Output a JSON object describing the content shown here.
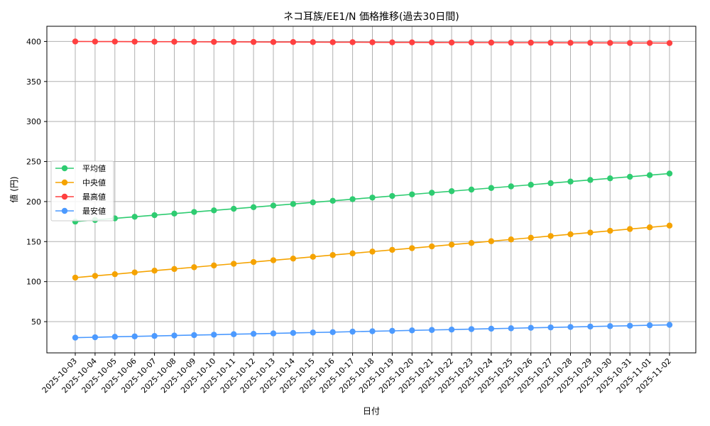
{
  "chart_data": {
    "type": "line",
    "title": "ネコ耳族/EE1/N 価格推移(過去30日間)",
    "xlabel": "日付",
    "ylabel": "値 (円)",
    "x": [
      "2025-10-03",
      "2025-10-04",
      "2025-10-05",
      "2025-10-06",
      "2025-10-07",
      "2025-10-08",
      "2025-10-09",
      "2025-10-10",
      "2025-10-11",
      "2025-10-12",
      "2025-10-13",
      "2025-10-14",
      "2025-10-15",
      "2025-10-16",
      "2025-10-17",
      "2025-10-18",
      "2025-10-19",
      "2025-10-20",
      "2025-10-21",
      "2025-10-22",
      "2025-10-23",
      "2025-10-24",
      "2025-10-25",
      "2025-10-26",
      "2025-10-27",
      "2025-10-28",
      "2025-10-29",
      "2025-10-30",
      "2025-10-31",
      "2025-11-01",
      "2025-11-02"
    ],
    "ylim": [
      11,
      419
    ],
    "yticks": [
      50,
      100,
      150,
      200,
      250,
      300,
      350,
      400
    ],
    "grid": true,
    "legend_position": "center-left",
    "series": [
      {
        "name": "平均値",
        "color": "#2ecc71",
        "values": [
          175,
          177,
          179,
          181,
          183,
          185,
          187,
          189,
          191,
          193,
          195,
          197,
          199,
          201,
          203,
          205,
          207,
          209,
          211,
          213,
          215,
          217,
          219,
          221,
          223,
          225,
          227,
          229,
          231,
          233,
          235
        ]
      },
      {
        "name": "中央値",
        "color": "#f5a300",
        "values": [
          105,
          107.2,
          109.3,
          111.5,
          113.7,
          115.8,
          118,
          120.2,
          122.3,
          124.5,
          126.7,
          128.8,
          131,
          133.2,
          135.3,
          137.5,
          139.7,
          141.8,
          144,
          146.2,
          148.3,
          150.5,
          152.7,
          154.8,
          157,
          159.2,
          161.3,
          163.5,
          165.7,
          167.8,
          170
        ]
      },
      {
        "name": "最高値",
        "color": "#ff4040",
        "values": [
          400,
          399.9,
          399.9,
          399.8,
          399.7,
          399.7,
          399.6,
          399.5,
          399.5,
          399.4,
          399.3,
          399.3,
          399.2,
          399.1,
          399.1,
          399,
          398.9,
          398.9,
          398.8,
          398.7,
          398.7,
          398.6,
          398.5,
          398.5,
          398.4,
          398.3,
          398.3,
          398.2,
          398.1,
          398.1,
          398
        ]
      },
      {
        "name": "最安値",
        "color": "#4c9aff",
        "values": [
          30,
          30.5,
          31.1,
          31.6,
          32.1,
          32.7,
          33.2,
          33.7,
          34.3,
          34.8,
          35.3,
          35.9,
          36.4,
          36.9,
          37.5,
          38,
          38.5,
          39.1,
          39.6,
          40.1,
          40.7,
          41.2,
          41.7,
          42.3,
          42.8,
          43.3,
          43.9,
          44.4,
          44.9,
          45.5,
          46
        ]
      }
    ]
  }
}
